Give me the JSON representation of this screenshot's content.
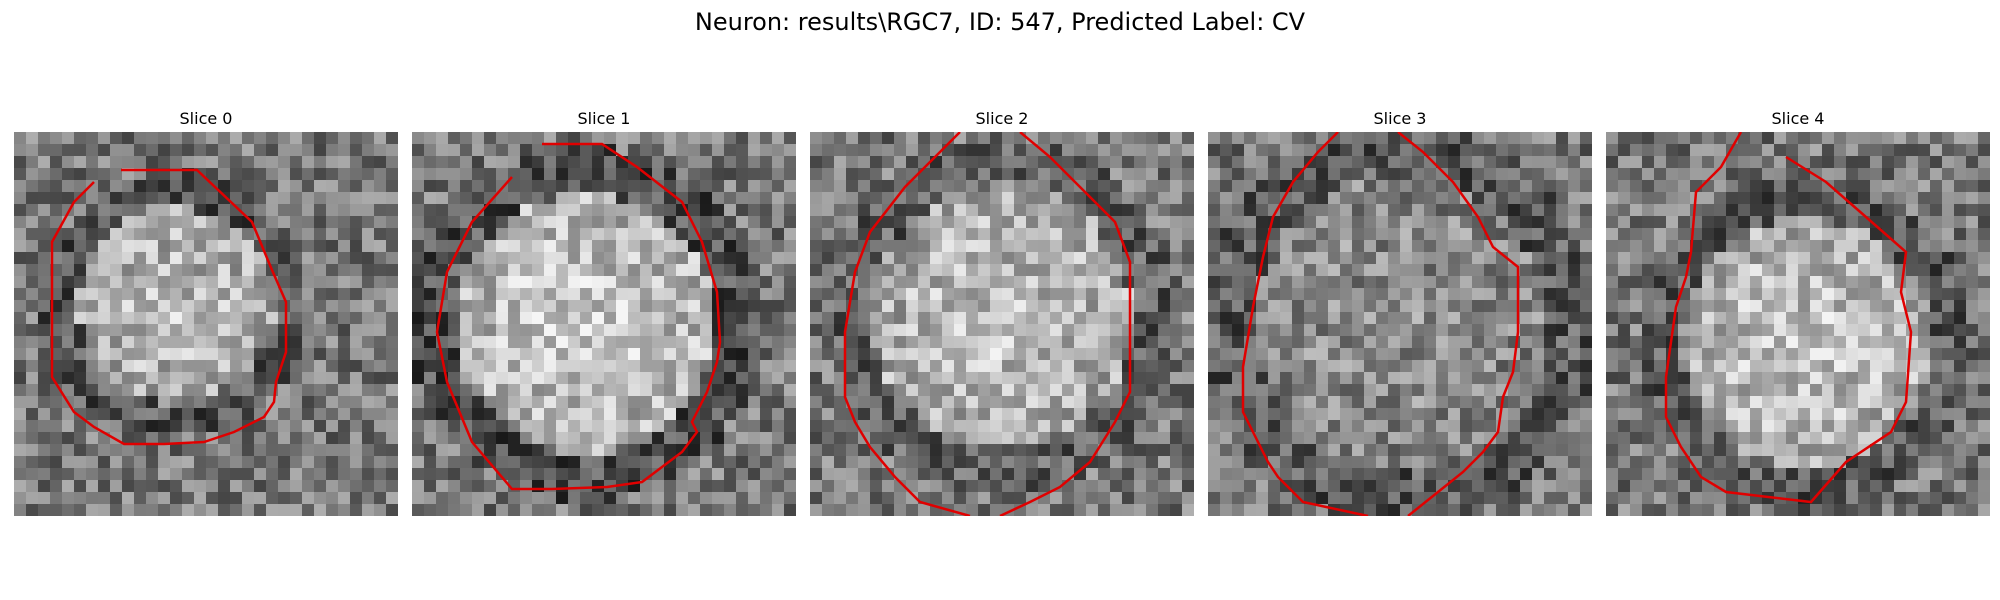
{
  "figure": {
    "title": "Neuron: results\\RGC7, ID: 547, Predicted Label: CV"
  },
  "panels": [
    {
      "title": "Slice 0"
    },
    {
      "title": "Slice 1"
    },
    {
      "title": "Slice 2"
    },
    {
      "title": "Slice 3"
    },
    {
      "title": "Slice 4"
    }
  ],
  "colors": {
    "contour": "#e00000"
  }
}
